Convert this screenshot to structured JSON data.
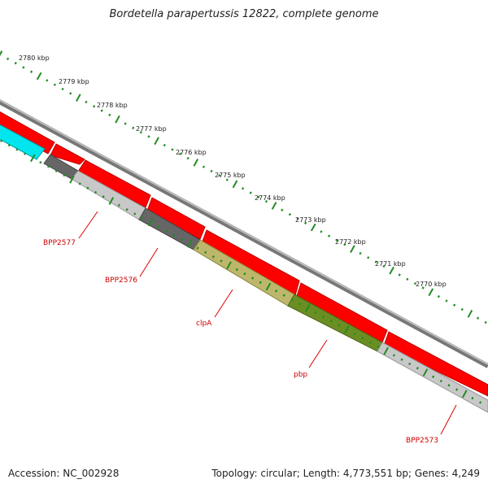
{
  "title": "Bordetella parapertussis 12822, complete genome",
  "footer": {
    "accession": "Accession: NC_002928",
    "summary": "Topology: circular; Length: 4,773,551 bp; Genes: 4,249"
  },
  "ticks": [
    {
      "label": "2780 kbp"
    },
    {
      "label": "2779 kbp"
    },
    {
      "label": "2778 kbp"
    },
    {
      "label": "2777 kbp"
    },
    {
      "label": "2776 kbp"
    },
    {
      "label": "2775 kbp"
    },
    {
      "label": "2774 kbp"
    },
    {
      "label": "2773 kbp"
    },
    {
      "label": "2772 kbp"
    },
    {
      "label": "2771 kbp"
    },
    {
      "label": "2770 kbp"
    }
  ],
  "gene_labels": [
    {
      "name": "BPP2577"
    },
    {
      "name": "BPP2576"
    },
    {
      "name": "clpA"
    },
    {
      "name": "pbp"
    },
    {
      "name": "BPP2573"
    }
  ],
  "colors": {
    "cds": "#ff0000",
    "label": "#cc0000",
    "tick": "#228b22",
    "cyan": "#00e5ee",
    "dark_gray": "#666666",
    "light_gray": "#c8c8c8",
    "khaki": "#bdb76b",
    "olive": "#6b8e23",
    "backbone": "#888888"
  }
}
